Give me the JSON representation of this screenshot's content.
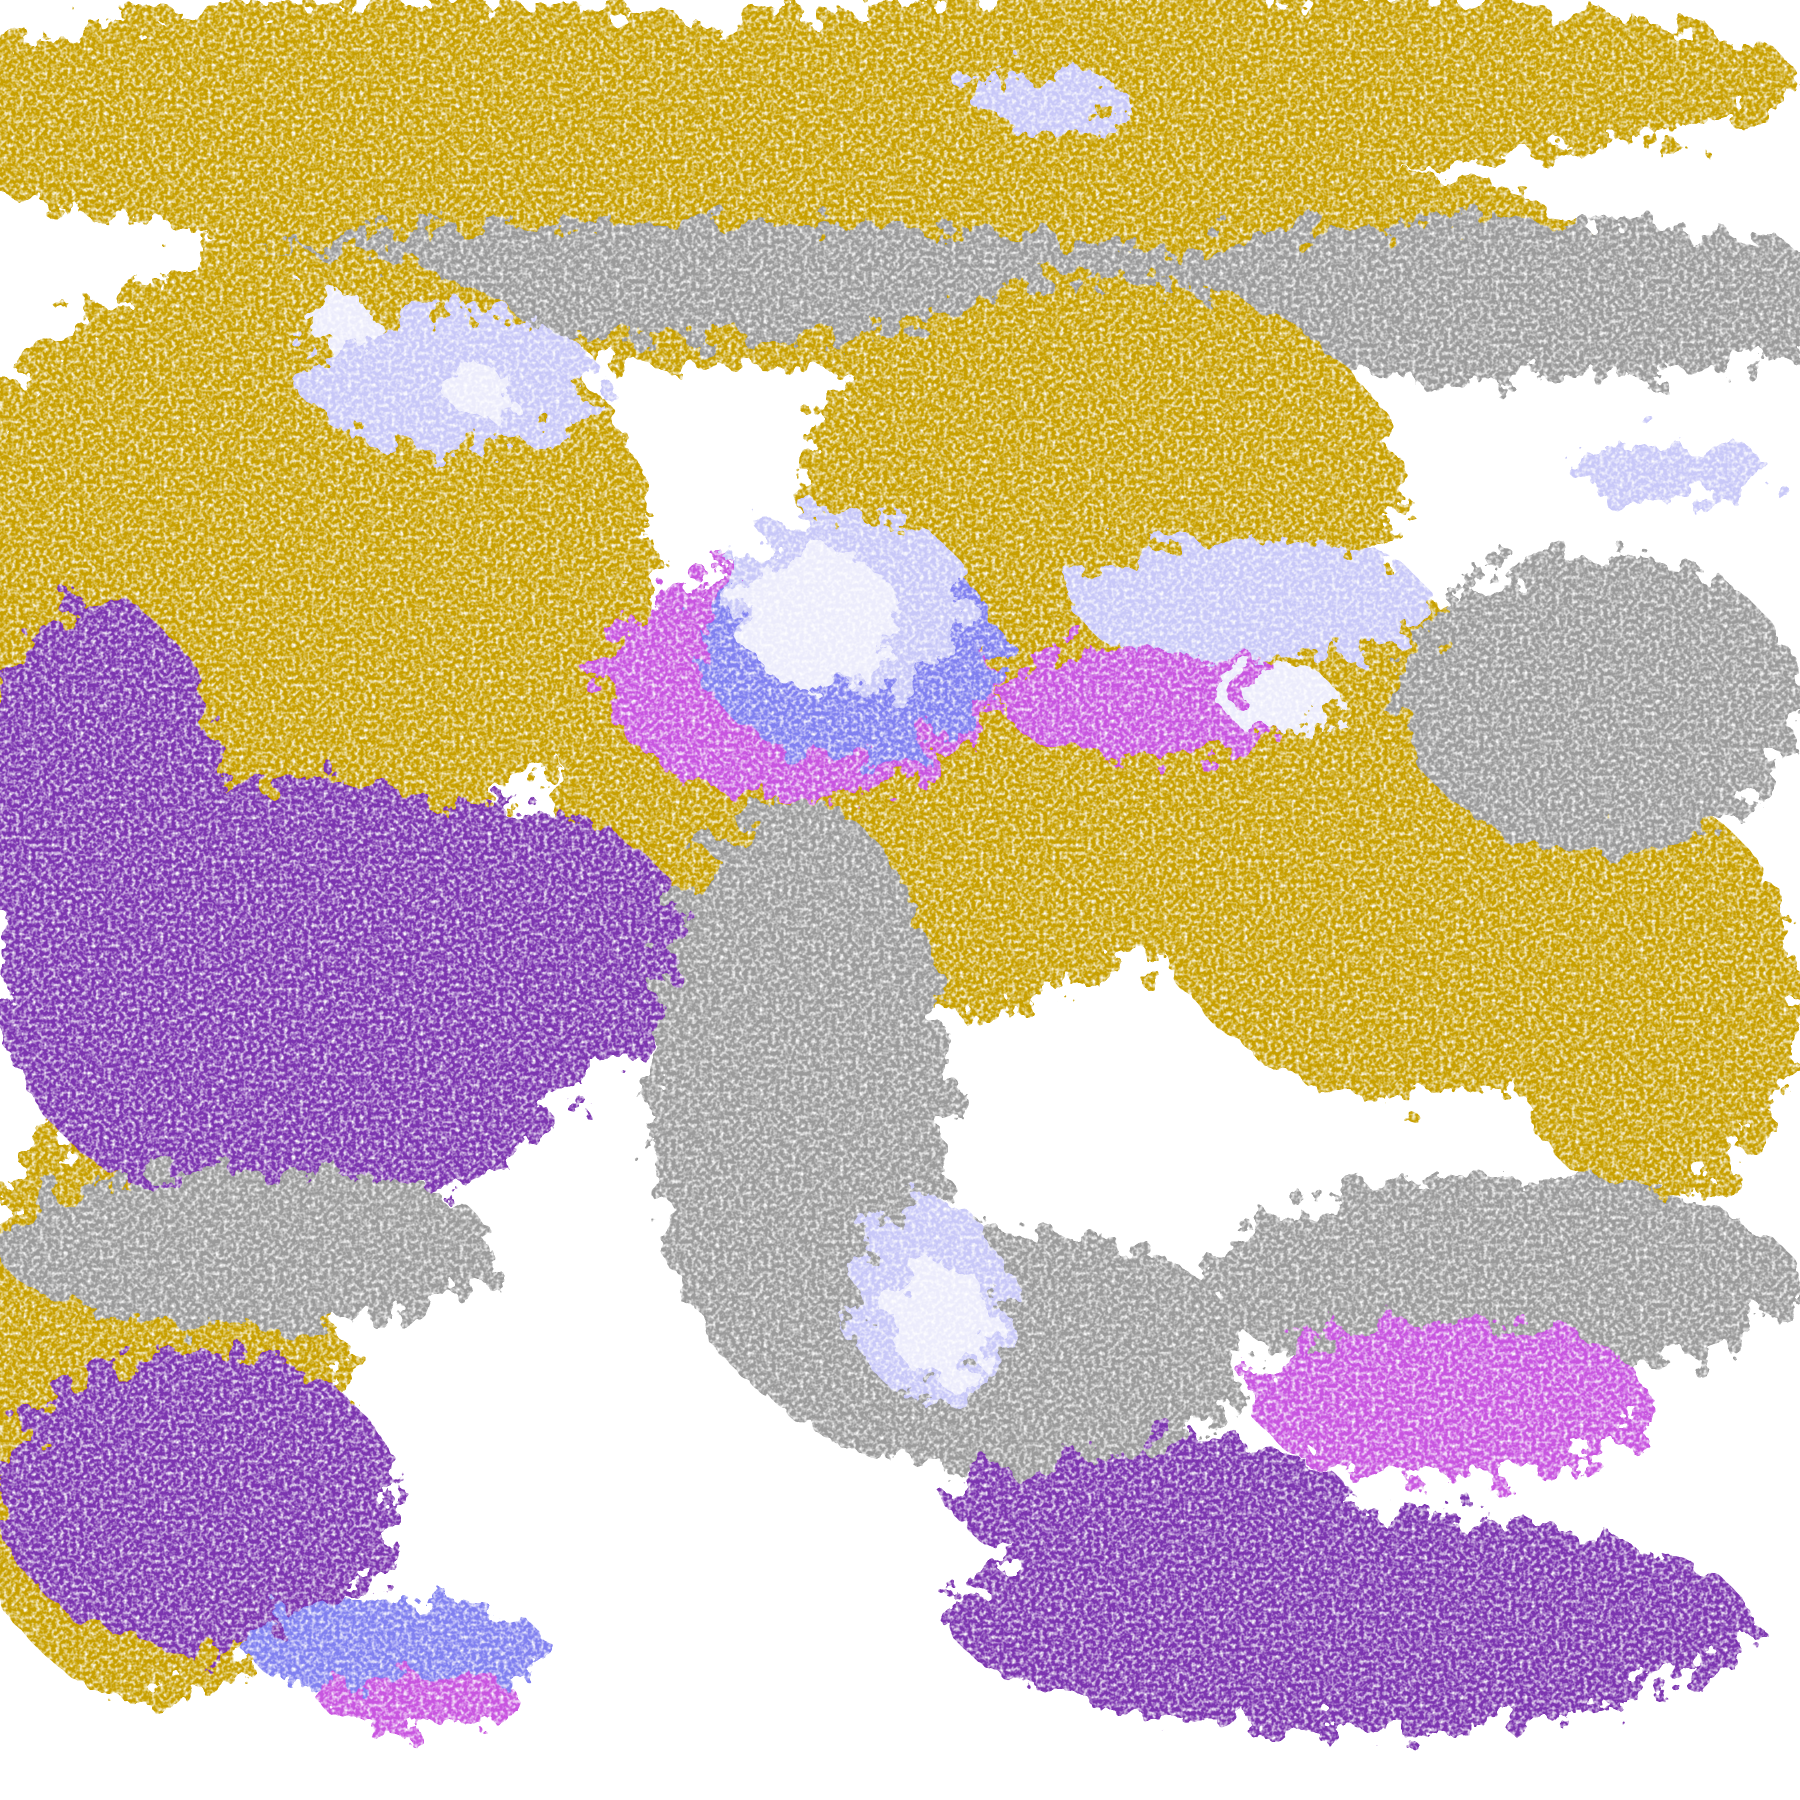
{
  "image": {
    "kind": "false-color satellite cloud imagery",
    "palette": {
      "background": "#ffffff",
      "gold": "#c8a000",
      "dark_gold": "#b8860b",
      "purple": "#7b35b0",
      "magenta": "#c855e0",
      "periwinkle": "#8080f0",
      "lavender": "#c8c8f8",
      "pale": "#ececfc",
      "gray": "#9a9a9a"
    }
  }
}
